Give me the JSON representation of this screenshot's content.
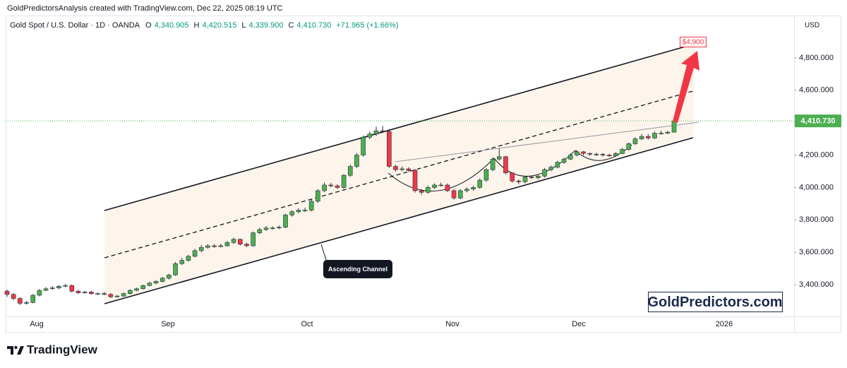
{
  "chart_data": {
    "type": "candlestick",
    "title": "GoldPredictorsAnalysis created with TradingView.com, Dec 22, 2025 08:19 UTC",
    "legend": {
      "symbol": "Gold Spot / U.S. Dollar · 1D · OANDA",
      "items": [
        {
          "label": "O",
          "value": "4,340.905"
        },
        {
          "label": "H",
          "value": "4,420.515"
        },
        {
          "label": "L",
          "value": "4,339.900"
        },
        {
          "label": "C",
          "value": "4,410.730"
        }
      ],
      "change": "+71.965 (+1.66%)"
    },
    "y_axis_label": "USD",
    "ylim": [
      3204,
      5061
    ],
    "yticks": [
      {
        "value": 3400,
        "label": "3,400.000"
      },
      {
        "value": 3600,
        "label": "3,600.000"
      },
      {
        "value": 3800,
        "label": "3,800.000"
      },
      {
        "value": 4000,
        "label": "4,000.000"
      },
      {
        "value": 4200,
        "label": "4,200.000"
      },
      {
        "value": 4400,
        "label": "4,400.000"
      },
      {
        "value": 4600,
        "label": "4,600.000"
      },
      {
        "value": 4800,
        "label": "4,800.000"
      }
    ],
    "grid": false,
    "price_line": {
      "value": 4410.73,
      "label": "4,410.730"
    },
    "xaxis_labels": [
      "Aug",
      "Sep",
      "Oct",
      "Nov",
      "Dec",
      "2026"
    ],
    "up_color": "#4caf50",
    "down_color": "#f23645",
    "open": [
      3360,
      3340,
      3315,
      3285,
      3290,
      3335,
      3365,
      3375,
      3380,
      3390,
      3395,
      3360,
      3350,
      3355,
      3345,
      3345,
      3340,
      3325,
      3330,
      3345,
      3365,
      3375,
      3395,
      3410,
      3420,
      3440,
      3460,
      3530,
      3550,
      3575,
      3610,
      3630,
      3640,
      3635,
      3640,
      3660,
      3680,
      3650,
      3640,
      3720,
      3740,
      3750,
      3750,
      3755,
      3830,
      3850,
      3860,
      3860,
      3915,
      3980,
      4015,
      4010,
      4000,
      4075,
      4130,
      4200,
      4310,
      4330,
      4350,
      4345,
      4130,
      4110,
      4115,
      4105,
      3980,
      3970,
      4000,
      4015,
      4015,
      3980,
      3935,
      3980,
      3990,
      4000,
      4045,
      4110,
      4175,
      4190,
      4090,
      4040,
      4035,
      4065,
      4060,
      4070,
      4110,
      4125,
      4155,
      4175,
      4200,
      4220,
      4210,
      4205,
      4205,
      4200,
      4195,
      4210,
      4235,
      4270,
      4300,
      4315,
      4305,
      4335,
      4335,
      4340.905
    ],
    "high": [
      3370,
      3348,
      3322,
      3300,
      3342,
      3372,
      3385,
      3392,
      3398,
      3405,
      3402,
      3368,
      3362,
      3362,
      3352,
      3355,
      3348,
      3336,
      3352,
      3372,
      3382,
      3400,
      3418,
      3428,
      3448,
      3468,
      3540,
      3565,
      3585,
      3622,
      3645,
      3650,
      3650,
      3652,
      3670,
      3690,
      3685,
      3660,
      3728,
      3752,
      3762,
      3760,
      3765,
      3838,
      3860,
      3872,
      3875,
      3925,
      3990,
      4030,
      4028,
      4020,
      4082,
      4140,
      4212,
      4320,
      4345,
      4375,
      4380,
      4360,
      4140,
      4130,
      4125,
      4115,
      3990,
      4012,
      4025,
      4030,
      4025,
      3992,
      3990,
      4000,
      4010,
      4055,
      4120,
      4185,
      4240,
      4195,
      4095,
      4050,
      4072,
      4075,
      4080,
      4120,
      4135,
      4165,
      4185,
      4210,
      4230,
      4225,
      4215,
      4215,
      4212,
      4208,
      4218,
      4245,
      4278,
      4310,
      4330,
      4330,
      4345,
      4350,
      4350,
      4420.515
    ],
    "low": [
      3325,
      3305,
      3275,
      3278,
      3285,
      3328,
      3360,
      3368,
      3372,
      3385,
      3352,
      3342,
      3345,
      3338,
      3336,
      3335,
      3318,
      3320,
      3325,
      3340,
      3360,
      3370,
      3390,
      3402,
      3415,
      3432,
      3455,
      3522,
      3542,
      3568,
      3600,
      3622,
      3628,
      3630,
      3635,
      3652,
      3642,
      3632,
      3635,
      3712,
      3732,
      3740,
      3742,
      3748,
      3820,
      3840,
      3848,
      3852,
      3905,
      3970,
      4000,
      3990,
      3992,
      4065,
      4120,
      4190,
      4298,
      4318,
      4335,
      4120,
      4098,
      4100,
      4095,
      3968,
      3955,
      3962,
      3990,
      4005,
      3972,
      3925,
      3928,
      3970,
      3980,
      3992,
      4035,
      4100,
      4165,
      4080,
      4030,
      4020,
      4025,
      4052,
      4050,
      4062,
      4100,
      4118,
      4145,
      4168,
      4192,
      4198,
      4195,
      4195,
      4190,
      4188,
      4190,
      4205,
      4228,
      4262,
      4292,
      4295,
      4300,
      4325,
      4330,
      4339.9
    ],
    "close": [
      3340,
      3315,
      3285,
      3290,
      3335,
      3365,
      3375,
      3380,
      3390,
      3395,
      3360,
      3350,
      3355,
      3345,
      3345,
      3340,
      3325,
      3330,
      3345,
      3365,
      3375,
      3395,
      3410,
      3420,
      3440,
      3460,
      3530,
      3550,
      3575,
      3610,
      3630,
      3640,
      3635,
      3640,
      3660,
      3680,
      3650,
      3640,
      3720,
      3740,
      3750,
      3750,
      3755,
      3830,
      3850,
      3860,
      3860,
      3915,
      3980,
      4015,
      4010,
      4000,
      4075,
      4130,
      4200,
      4310,
      4330,
      4350,
      4345,
      4130,
      4110,
      4115,
      4105,
      3980,
      3970,
      4000,
      4015,
      4015,
      3980,
      3935,
      3980,
      3990,
      4000,
      4045,
      4110,
      4175,
      4190,
      4090,
      4040,
      4035,
      4065,
      4060,
      4070,
      4110,
      4125,
      4155,
      4175,
      4200,
      4220,
      4210,
      4205,
      4205,
      4200,
      4195,
      4210,
      4235,
      4270,
      4300,
      4315,
      4305,
      4335,
      4335,
      4341,
      4410.73
    ],
    "annotations": {
      "target": "$4,900",
      "pattern": "Ascending Channel",
      "watermark": "GoldPredictors.com"
    },
    "brand": "TradingView"
  }
}
